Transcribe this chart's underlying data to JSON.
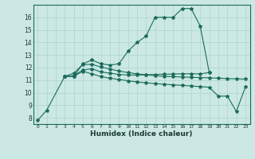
{
  "xlabel": "Humidex (Indice chaleur)",
  "background_color": "#cce8e4",
  "grid_color": "#aad4cc",
  "line_color": "#1a6b5a",
  "series": {
    "main": {
      "x": [
        0,
        1,
        3,
        4,
        5,
        6,
        7,
        8,
        9,
        10,
        11,
        12,
        13,
        14,
        15,
        16,
        17,
        18,
        19
      ],
      "y": [
        7.8,
        8.6,
        11.3,
        11.3,
        12.3,
        12.6,
        12.3,
        12.2,
        12.3,
        13.3,
        14.0,
        14.5,
        16.0,
        16.0,
        16.0,
        16.7,
        16.7,
        15.3,
        11.6
      ]
    },
    "line2": {
      "x": [
        3,
        4,
        5,
        6,
        7,
        8,
        9,
        10,
        11,
        12,
        13,
        14,
        15,
        16,
        17,
        18,
        19
      ],
      "y": [
        11.3,
        11.35,
        11.8,
        11.9,
        11.65,
        11.55,
        11.45,
        11.4,
        11.4,
        11.42,
        11.45,
        11.47,
        11.48,
        11.5,
        11.5,
        11.5,
        11.6
      ]
    },
    "line3": {
      "x": [
        3,
        4,
        5,
        6,
        7,
        8,
        9,
        10,
        11,
        12,
        13,
        14,
        15,
        16,
        17,
        18,
        19,
        20,
        21,
        22,
        23
      ],
      "y": [
        11.3,
        11.3,
        11.7,
        11.5,
        11.28,
        11.15,
        11.05,
        10.95,
        10.85,
        10.78,
        10.72,
        10.67,
        10.62,
        10.58,
        10.53,
        10.48,
        10.43,
        9.72,
        9.72,
        8.5,
        10.45
      ]
    },
    "line4": {
      "x": [
        3,
        4,
        5,
        6,
        7,
        8,
        9,
        10,
        11,
        12,
        13,
        14,
        15,
        16,
        17,
        18,
        19,
        20,
        21,
        22,
        23
      ],
      "y": [
        11.3,
        11.55,
        12.25,
        12.25,
        12.05,
        11.88,
        11.72,
        11.6,
        11.5,
        11.42,
        11.35,
        11.3,
        11.27,
        11.25,
        11.22,
        11.2,
        11.18,
        11.15,
        11.12,
        11.1,
        11.08
      ]
    }
  },
  "xlim": [
    -0.5,
    23.5
  ],
  "ylim": [
    7.5,
    17.0
  ],
  "yticks": [
    8,
    9,
    10,
    11,
    12,
    13,
    14,
    15,
    16
  ],
  "xticks": [
    0,
    1,
    2,
    3,
    4,
    5,
    6,
    7,
    8,
    9,
    10,
    11,
    12,
    13,
    14,
    15,
    16,
    17,
    18,
    19,
    20,
    21,
    22,
    23
  ],
  "xtick_labels": [
    "0",
    "1",
    "2",
    "3",
    "4",
    "5",
    "6",
    "7",
    "8",
    "9",
    "10",
    "11",
    "12",
    "13",
    "14",
    "15",
    "16",
    "17",
    "18",
    "19",
    "20",
    "21",
    "22",
    "23"
  ]
}
